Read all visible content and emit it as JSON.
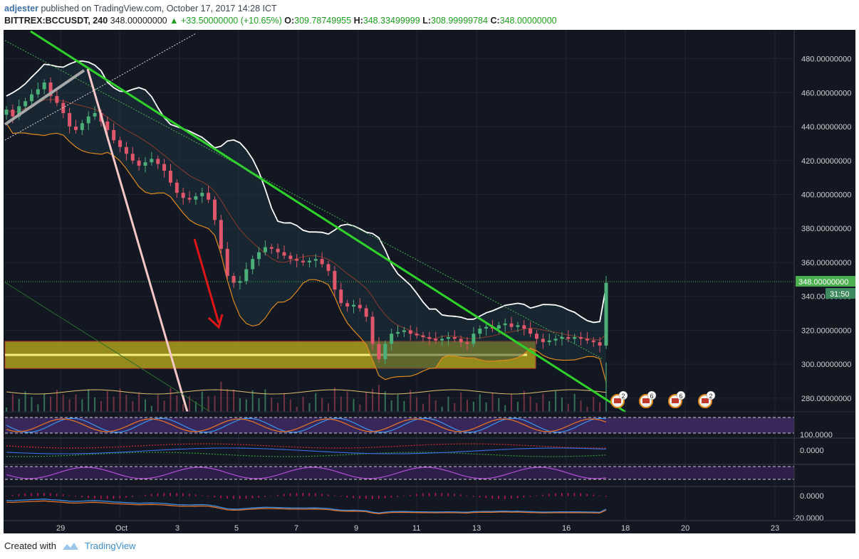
{
  "header": {
    "author": "adjester",
    "published_text": "published on TradingView.com, October 17, 2017 14:28 ICT",
    "symbol": "BITTREX:BCCUSDT, 240",
    "last": "348.00000000",
    "change": "+33.50000000 (+10.65%)",
    "o_label": "O:",
    "o_val": "309.78749955",
    "h_label": "H:",
    "h_val": "348.33499999",
    "l_label": "L:",
    "l_val": "308.99999784",
    "c_label": "C:",
    "c_val": "348.00000000"
  },
  "footer": {
    "created_with": "Created with",
    "brand": "TradingView"
  },
  "chart_data": {
    "type": "candlestick",
    "price_axis": {
      "ticks": [
        "480.00000000",
        "460.00000000",
        "440.00000000",
        "420.00000000",
        "400.00000000",
        "380.00000000",
        "360.00000000",
        "340.00000000",
        "320.00000000",
        "300.00000000",
        "280.00000000"
      ],
      "tick_values": [
        480,
        460,
        440,
        420,
        400,
        380,
        360,
        340,
        320,
        300,
        280
      ],
      "ylim": [
        272,
        497
      ],
      "last_price_label": "348.00000000",
      "last_price": 348,
      "countdown": "31:50"
    },
    "time_axis": {
      "labels": [
        "29",
        "Oct",
        "3",
        "5",
        "7",
        "9",
        "11",
        "13",
        "16",
        "18",
        "20",
        "23"
      ]
    },
    "indicator_axes": {
      "stoch_rsi": "100.0000",
      "momentum": "0.0000",
      "macd_top": "0.0000",
      "macd_bottom": "-20.0000"
    },
    "event_badges": [
      "2",
      "6",
      "6",
      "2"
    ],
    "closes": [
      450,
      446,
      452,
      455,
      459,
      462,
      466,
      458,
      454,
      448,
      440,
      438,
      442,
      446,
      448,
      443,
      438,
      432,
      428,
      424,
      420,
      417,
      419,
      421,
      418,
      414,
      407,
      401,
      398,
      397,
      399,
      401,
      397,
      385,
      368,
      352,
      348,
      349,
      356,
      362,
      366,
      369,
      368,
      366,
      364,
      362,
      361,
      360,
      361,
      362,
      359,
      355,
      344,
      336,
      334,
      335,
      333,
      328,
      312,
      303,
      312,
      318,
      319,
      320,
      318,
      317,
      316,
      315,
      314,
      315,
      316,
      315,
      313,
      312,
      318,
      321,
      322,
      321,
      323,
      324,
      322,
      323,
      321,
      318,
      315,
      313,
      314,
      315,
      316,
      315,
      316,
      315,
      314,
      313,
      311,
      348
    ],
    "support_zone": [
      298,
      313
    ],
    "support_line": 305
  }
}
